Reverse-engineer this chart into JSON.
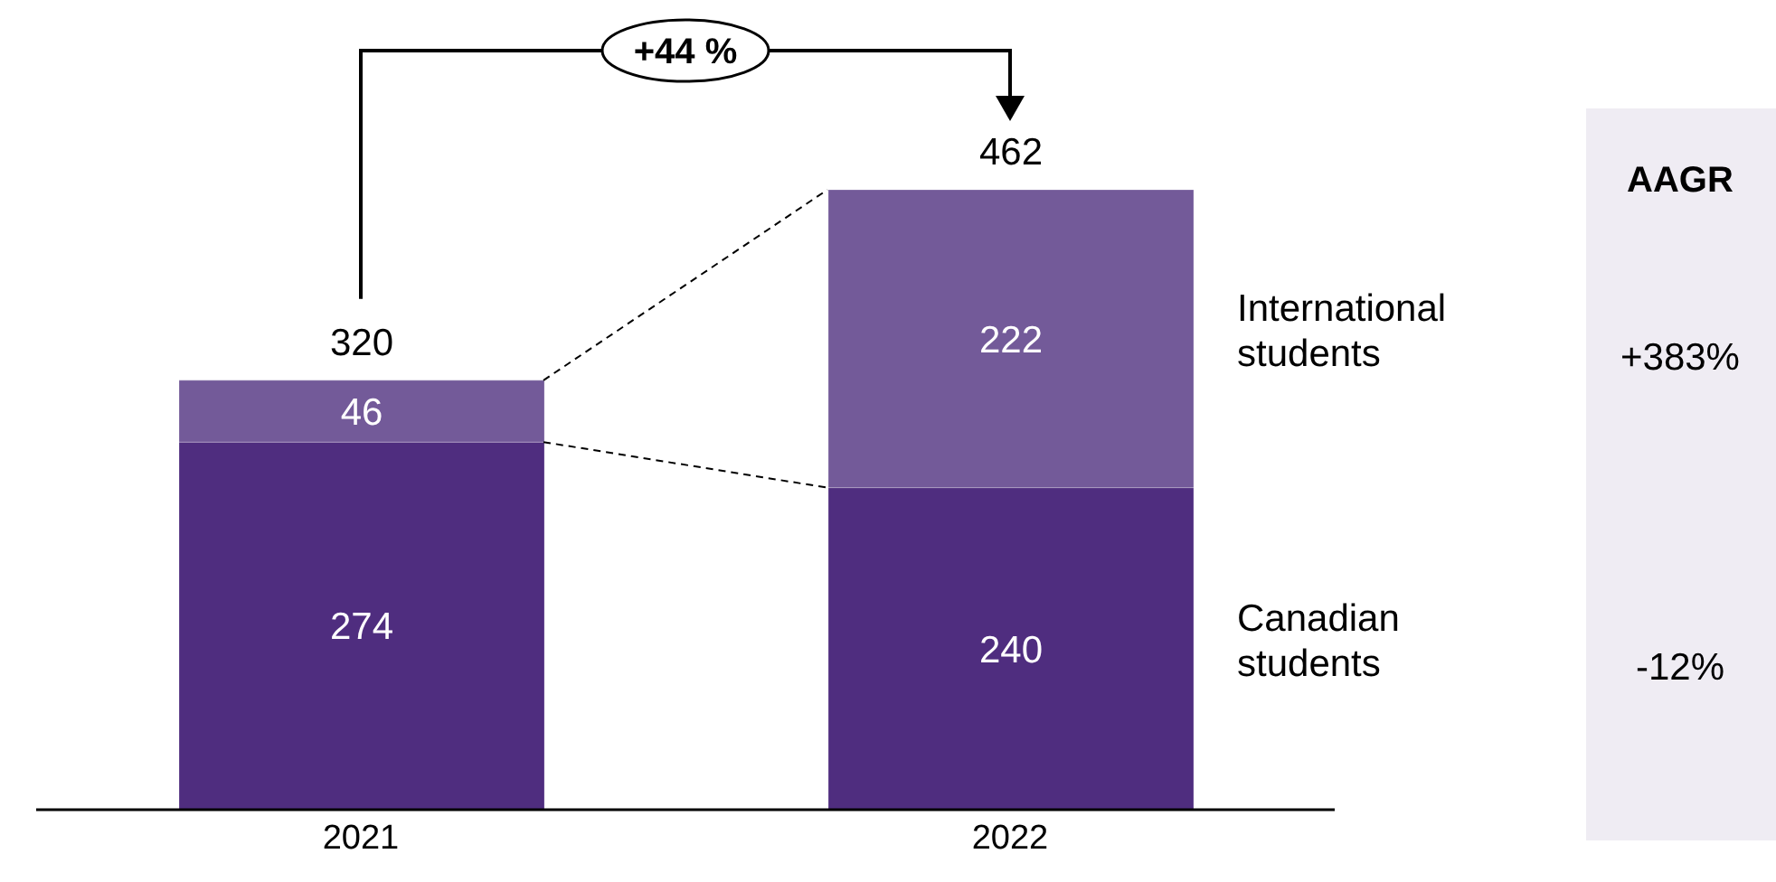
{
  "chart_data": {
    "type": "bar",
    "stacked": true,
    "categories": [
      "2021",
      "2022"
    ],
    "series": [
      {
        "name": "Canadian students",
        "color": "#4f2d7f",
        "values": [
          274,
          240
        ]
      },
      {
        "name": "International students",
        "color": "#735a99",
        "values": [
          46,
          222
        ]
      }
    ],
    "data_labels": true,
    "totals": [
      "320",
      "462"
    ],
    "annotations": [
      "+44 %",
      "AAGR",
      "+383%",
      "-12%"
    ]
  }
}
